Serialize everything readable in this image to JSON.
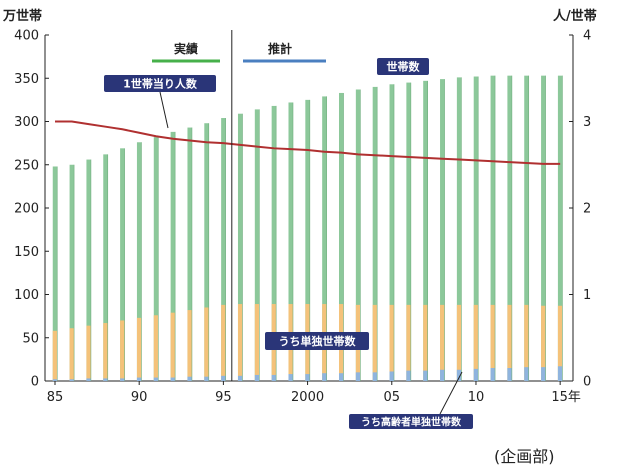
{
  "chart_data": {
    "type": "bar",
    "x_tick_labels": [
      "85",
      "90",
      "95",
      "2000",
      "05",
      "10",
      "15年"
    ],
    "y_left_label": "万世帯",
    "y_right_label": "人/世帯",
    "y_left_ticks": [
      "0",
      "50",
      "100",
      "150",
      "200",
      "250",
      "300",
      "350",
      "400"
    ],
    "y_right_ticks": [
      "0",
      "1",
      "2",
      "3",
      "4"
    ],
    "ylim_left": [
      0,
      400
    ],
    "ylim_right": [
      0,
      4
    ],
    "grid": false,
    "periods": {
      "actual": "実績",
      "projection": "推計",
      "split_year": 1995.5
    },
    "source": "(企画部)",
    "categories": [
      1985,
      1986,
      1987,
      1988,
      1989,
      1990,
      1991,
      1992,
      1993,
      1994,
      1995,
      1996,
      1997,
      1998,
      1999,
      2000,
      2001,
      2002,
      2003,
      2004,
      2005,
      2006,
      2007,
      2008,
      2009,
      2010,
      2011,
      2012,
      2013,
      2014,
      2015
    ],
    "series": [
      {
        "name": "世帯数",
        "axis": "left",
        "values": [
          248,
          250,
          256,
          262,
          269,
          276,
          282,
          288,
          293,
          298,
          304,
          309,
          314,
          318,
          322,
          325,
          329,
          333,
          337,
          340,
          343,
          345,
          347,
          349,
          351,
          352,
          353,
          353,
          353,
          353,
          353
        ]
      },
      {
        "name": "うち単独世帯数",
        "axis": "left",
        "values": [
          58,
          61,
          64,
          67,
          70,
          73,
          76,
          79,
          82,
          85,
          88,
          89,
          89,
          89,
          89,
          89,
          89,
          89,
          88,
          88,
          88,
          88,
          88,
          88,
          88,
          88,
          88,
          88,
          88,
          87,
          87
        ]
      },
      {
        "name": "うち高齢者単独世帯数",
        "axis": "left",
        "values": [
          2,
          2,
          3,
          3,
          3,
          4,
          4,
          4,
          5,
          5,
          6,
          6,
          7,
          7,
          8,
          8,
          9,
          9,
          10,
          10,
          11,
          12,
          12,
          13,
          13,
          14,
          15,
          15,
          16,
          16,
          17
        ]
      },
      {
        "name": "1世帯当り人数",
        "axis": "right",
        "type": "line",
        "values": [
          3.0,
          3.0,
          2.97,
          2.94,
          2.91,
          2.87,
          2.83,
          2.8,
          2.78,
          2.76,
          2.75,
          2.73,
          2.71,
          2.69,
          2.68,
          2.67,
          2.65,
          2.64,
          2.62,
          2.61,
          2.6,
          2.59,
          2.58,
          2.57,
          2.56,
          2.55,
          2.54,
          2.53,
          2.52,
          2.51,
          2.51
        ]
      }
    ],
    "colors": {
      "households": "#8cc89a",
      "single": "#f4c27a",
      "elderly": "#8fb4de",
      "line": "#b03030",
      "actual_bar": "#46b04a",
      "projection_bar": "#4a7fc0",
      "label_box": "#2a3578"
    }
  }
}
